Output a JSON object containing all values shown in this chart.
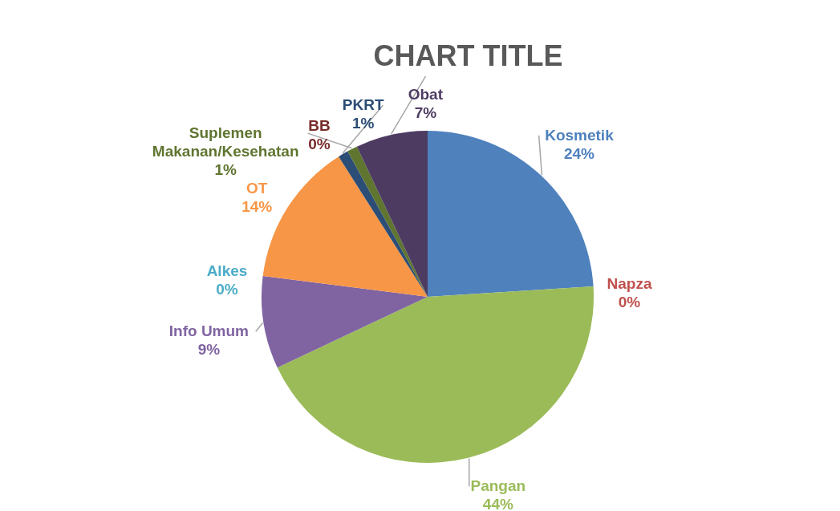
{
  "chart_data": {
    "type": "pie",
    "title": "CHART TITLE",
    "categories": [
      "Kosmetik",
      "Napza",
      "Pangan",
      "Info Umum",
      "Alkes",
      "OT",
      "BB",
      "PKRT",
      "Suplemen Makanan/Kesehatan",
      "Obat"
    ],
    "values": [
      24,
      0,
      44,
      9,
      0,
      14,
      0,
      1,
      1,
      7
    ],
    "value_labels": [
      "24%",
      "0%",
      "44%",
      "9%",
      "0%",
      "14%",
      "0%",
      "1%",
      "1%",
      "7%"
    ],
    "colors": [
      "#4f81bd",
      "#c0504d",
      "#9bbb59",
      "#8064a2",
      "#4bacc6",
      "#f79646",
      "#772c2a",
      "#2c4d75",
      "#5f7530",
      "#4d3b62"
    ],
    "legend": false
  }
}
